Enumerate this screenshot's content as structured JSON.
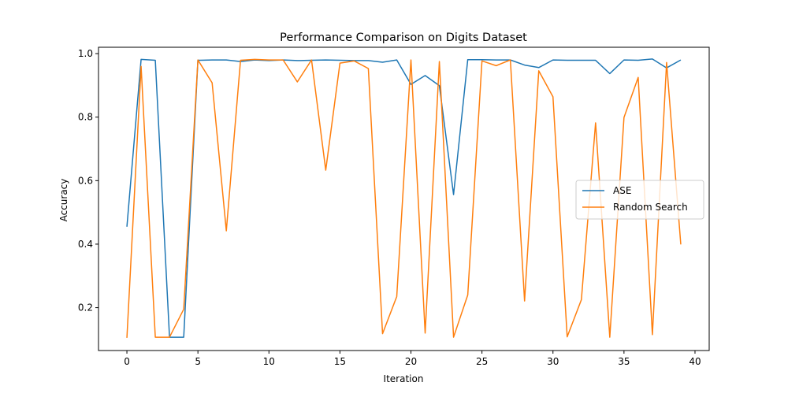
{
  "chart_data": {
    "type": "line",
    "title": "Performance Comparison on Digits Dataset",
    "xlabel": "Iteration",
    "ylabel": "Accuracy",
    "xlim": [
      -2,
      41
    ],
    "ylim": [
      0.065,
      1.02
    ],
    "xticks": [
      0,
      5,
      10,
      15,
      20,
      25,
      30,
      35,
      40
    ],
    "yticks": [
      0.2,
      0.4,
      0.6,
      0.8,
      1.0
    ],
    "ytick_labels": [
      "0.2",
      "0.4",
      "0.6",
      "0.8",
      "1.0"
    ],
    "legend_position": "center-right",
    "grid": false,
    "x": [
      0,
      1,
      2,
      3,
      4,
      5,
      6,
      7,
      8,
      9,
      10,
      11,
      12,
      13,
      14,
      15,
      16,
      17,
      18,
      19,
      20,
      21,
      22,
      23,
      24,
      25,
      26,
      27,
      28,
      29,
      30,
      31,
      32,
      33,
      34,
      35,
      36,
      37,
      38,
      39
    ],
    "series": [
      {
        "name": "ASE",
        "color": "#1f77b4",
        "values": [
          0.455,
          0.982,
          0.979,
          0.107,
          0.107,
          0.979,
          0.98,
          0.98,
          0.975,
          0.98,
          0.978,
          0.98,
          0.978,
          0.979,
          0.98,
          0.979,
          0.978,
          0.978,
          0.973,
          0.98,
          0.903,
          0.931,
          0.899,
          0.556,
          0.981,
          0.981,
          0.98,
          0.98,
          0.964,
          0.956,
          0.98,
          0.979,
          0.979,
          0.979,
          0.937,
          0.98,
          0.979,
          0.983,
          0.955,
          0.98
        ]
      },
      {
        "name": "Random Search",
        "color": "#ff7f0e",
        "values": [
          0.105,
          0.96,
          0.107,
          0.107,
          0.195,
          0.98,
          0.908,
          0.442,
          0.979,
          0.982,
          0.98,
          0.98,
          0.911,
          0.98,
          0.633,
          0.97,
          0.977,
          0.953,
          0.118,
          0.235,
          0.98,
          0.12,
          0.975,
          0.107,
          0.24,
          0.977,
          0.962,
          0.98,
          0.221,
          0.946,
          0.864,
          0.108,
          0.225,
          0.782,
          0.107,
          0.799,
          0.925,
          0.115,
          0.972,
          0.399
        ]
      }
    ]
  }
}
